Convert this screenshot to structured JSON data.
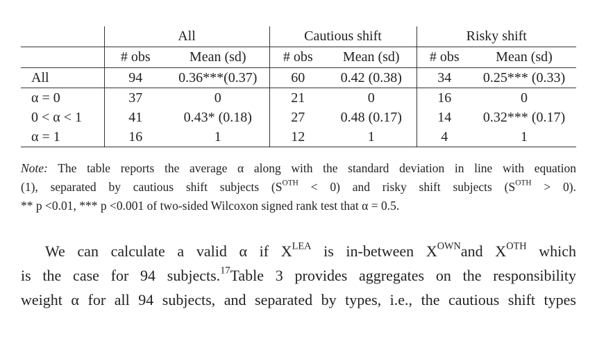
{
  "table": {
    "group_headers": [
      "All",
      "Cautious shift",
      "Risky shift"
    ],
    "column_headers": [
      "# obs",
      "Mean (sd)",
      "# obs",
      "Mean (sd)",
      "# obs",
      "Mean (sd)"
    ],
    "rows": [
      [
        "All",
        "94",
        "0.36***(0.37)",
        "60",
        "0.42 (0.38)",
        "34",
        "0.25*** (0.33)"
      ],
      [
        "α = 0",
        "37",
        "0",
        "21",
        "0",
        "16",
        "0"
      ],
      [
        "0 < α < 1",
        "41",
        "0.43* (0.18)",
        "27",
        "0.48 (0.17)",
        "14",
        "0.32*** (0.17)"
      ],
      [
        "α = 1",
        "16",
        "1",
        "12",
        "1",
        "4",
        "1"
      ]
    ]
  },
  "note": {
    "lines": [
      [
        {
          "em": "Note:"
        },
        " The table reports the average α along with the standard deviation in line with equation"
      ],
      [
        "(1), separated by cautious shift subjects (S",
        {
          "sup": "OTH"
        },
        " < 0) and risky shift subjects (S",
        {
          "sup": "OTH"
        },
        " > 0)."
      ],
      [
        "** p <0.01, *** p <0.001 of two-sided Wilcoxon signed rank test that α = 0.5."
      ]
    ]
  },
  "paragraph": {
    "lines": [
      [
        "We can calculate a valid α if X",
        {
          "sup": "LEA"
        },
        " is in-between X",
        {
          "sup": "OWN"
        },
        "and X",
        {
          "sup": "OTH"
        },
        " which"
      ],
      [
        "is the case for 94 subjects.",
        {
          "sup": "17"
        },
        "Table 3 provides aggregates on the responsibility"
      ],
      [
        "weight α for all 94 subjects, and separated by types, i.e., the cautious shift types"
      ]
    ]
  }
}
